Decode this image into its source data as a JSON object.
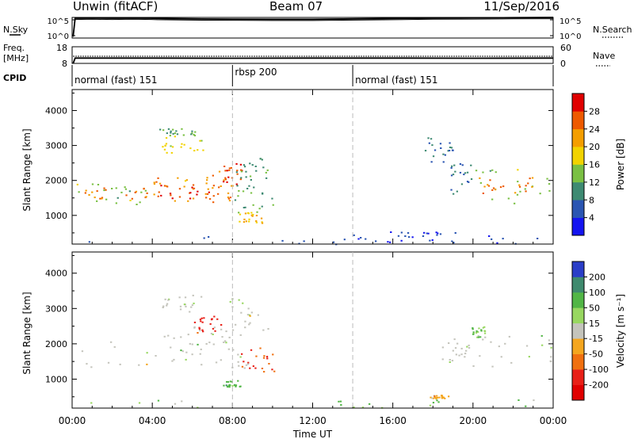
{
  "header": {
    "station": "Unwin (fitACF)",
    "beam": "Beam 07",
    "date": "11/Sep/2016"
  },
  "chart_data": [
    {
      "type": "line",
      "panel": "noise",
      "left_label": "N.Sky",
      "right_label": "N.Search",
      "left_ticks": [
        "10^5",
        "10^0"
      ],
      "right_ticks": [
        "10^5",
        "10^0"
      ],
      "series": [
        {
          "values": [
            {
              "x": 0.05,
              "y": 0.08
            },
            {
              "x": 0.15,
              "y": 0.96
            },
            {
              "x": 1.0,
              "y": 0.97
            },
            {
              "x": 2.0,
              "y": 0.96
            },
            {
              "x": 3.0,
              "y": 0.97
            },
            {
              "x": 3.95,
              "y": 0.96
            },
            {
              "x": 4.25,
              "y": 0.95
            },
            {
              "x": 6.0,
              "y": 0.93
            },
            {
              "x": 8.0,
              "y": 0.92
            },
            {
              "x": 10.0,
              "y": 0.91
            },
            {
              "x": 12.0,
              "y": 0.91
            },
            {
              "x": 14.0,
              "y": 0.93
            },
            {
              "x": 16.0,
              "y": 0.95
            },
            {
              "x": 18.0,
              "y": 0.97
            },
            {
              "x": 20.0,
              "y": 0.98
            },
            {
              "x": 22.0,
              "y": 0.99
            },
            {
              "x": 24.0,
              "y": 1.0
            }
          ]
        },
        {
          "values": [
            {
              "x": 0.05,
              "y": 0.06
            },
            {
              "x": 0.15,
              "y": 0.9
            },
            {
              "x": 1.0,
              "y": 0.91
            },
            {
              "x": 2.0,
              "y": 0.9
            },
            {
              "x": 3.0,
              "y": 0.91
            },
            {
              "x": 3.95,
              "y": 0.9
            },
            {
              "x": 4.25,
              "y": 0.89
            },
            {
              "x": 6.0,
              "y": 0.87
            },
            {
              "x": 8.0,
              "y": 0.86
            },
            {
              "x": 10.0,
              "y": 0.85
            },
            {
              "x": 12.0,
              "y": 0.85
            },
            {
              "x": 14.0,
              "y": 0.87
            },
            {
              "x": 16.0,
              "y": 0.89
            },
            {
              "x": 18.0,
              "y": 0.91
            },
            {
              "x": 20.0,
              "y": 0.92
            },
            {
              "x": 22.0,
              "y": 0.93
            },
            {
              "x": 24.0,
              "y": 0.94
            }
          ]
        }
      ],
      "gap": [
        3.95,
        4.25
      ]
    },
    {
      "type": "line",
      "panel": "frequency",
      "left_label": "Freq. [MHz]",
      "right_label": "Nave",
      "left_ticks": [
        18,
        8
      ],
      "right_ticks": [
        60,
        0
      ],
      "series": [
        {
          "values": [
            {
              "x": 0.05,
              "y": 8
            },
            {
              "x": 0.15,
              "y": 11.2
            },
            {
              "x": 4.0,
              "y": 11.2
            },
            {
              "x": 8.0,
              "y": 11.1
            },
            {
              "x": 12.0,
              "y": 11.2
            },
            {
              "x": 16.0,
              "y": 11.2
            },
            {
              "x": 20.0,
              "y": 11.1
            },
            {
              "x": 24.0,
              "y": 11.2
            }
          ]
        },
        {
          "values": [
            {
              "x": 0.05,
              "y": 12.3
            },
            {
              "x": 4.0,
              "y": 12.3
            },
            {
              "x": 8.0,
              "y": 12.3
            },
            {
              "x": 12.0,
              "y": 12.3
            },
            {
              "x": 16.0,
              "y": 12.3
            },
            {
              "x": 20.0,
              "y": 12.3
            },
            {
              "x": 24.0,
              "y": 12.3
            }
          ]
        }
      ]
    },
    {
      "type": "table",
      "panel": "cpid",
      "label": "CPID",
      "segments": [
        {
          "start": 0,
          "end": 8,
          "name": "normal (fast) 151"
        },
        {
          "start": 8,
          "end": 14,
          "name": "rbsp 200"
        },
        {
          "start": 14,
          "end": 24,
          "name": "normal (fast) 151"
        }
      ]
    },
    {
      "type": "heatmap",
      "panel": "power",
      "ylabel": "Slant Range [km]",
      "ylim": [
        180,
        4600
      ],
      "yticks": [
        1000,
        2000,
        3000,
        4000
      ],
      "colorbar_label": "Power [dB]",
      "colorbar_ticks": [
        4,
        8,
        12,
        16,
        20,
        24,
        28
      ],
      "colorbar_range": [
        0,
        32
      ],
      "colorbar_colors": [
        "#1414f0",
        "#2a55b2",
        "#3e8a72",
        "#7ac043",
        "#f2d300",
        "#f49e00",
        "#ee5a00",
        "#e00000"
      ],
      "regions": [
        {
          "t0": 0.2,
          "t1": 3.9,
          "r0": 1300,
          "r1": 1950,
          "p": 14
        },
        {
          "t0": 0.6,
          "t1": 3.7,
          "r0": 1450,
          "r1": 1800,
          "p": 24
        },
        {
          "t0": 4.0,
          "t1": 7.0,
          "r0": 1300,
          "r1": 2100,
          "p": 22
        },
        {
          "t0": 4.2,
          "t1": 6.8,
          "r0": 1500,
          "r1": 1900,
          "p": 28
        },
        {
          "t0": 6.6,
          "t1": 8.0,
          "r0": 1300,
          "r1": 2300,
          "p": 24
        },
        {
          "t0": 7.5,
          "t1": 8.7,
          "r0": 1900,
          "r1": 2500,
          "p": 28
        },
        {
          "t0": 4.3,
          "t1": 6.5,
          "r0": 2800,
          "r1": 3300,
          "p": 18
        },
        {
          "t0": 4.3,
          "t1": 6.2,
          "r0": 3300,
          "r1": 3500,
          "p": 12
        },
        {
          "t0": 8.0,
          "t1": 10.0,
          "r0": 1100,
          "r1": 2000,
          "p": 12
        },
        {
          "t0": 8.3,
          "t1": 9.5,
          "r0": 800,
          "r1": 1100,
          "p": 20
        },
        {
          "t0": 8.1,
          "t1": 9.8,
          "r0": 2000,
          "r1": 2700,
          "p": 11
        },
        {
          "t0": 18.8,
          "t1": 20.0,
          "r0": 1600,
          "r1": 2500,
          "p": 8
        },
        {
          "t0": 20.0,
          "t1": 23.9,
          "r0": 1350,
          "r1": 2350,
          "p": 14
        },
        {
          "t0": 20.2,
          "t1": 23.2,
          "r0": 1650,
          "r1": 2100,
          "p": 24
        },
        {
          "t0": 17.5,
          "t1": 19.0,
          "r0": 2500,
          "r1": 3300,
          "p": 8
        },
        {
          "t0": 0.0,
          "t1": 24.0,
          "r0": 190,
          "r1": 520,
          "p": 6
        },
        {
          "t0": 15.5,
          "t1": 19.3,
          "r0": 190,
          "r1": 560,
          "p": 4
        }
      ]
    },
    {
      "type": "heatmap",
      "panel": "velocity",
      "ylabel": "Slant Range [km]",
      "ylim": [
        180,
        4600
      ],
      "yticks": [
        1000,
        2000,
        3000,
        4000
      ],
      "xlabel": "Time UT",
      "xlim": [
        0,
        24
      ],
      "xticks": [
        "00:00",
        "04:00",
        "08:00",
        "12:00",
        "16:00",
        "20:00",
        "00:00"
      ],
      "colorbar_label": "Velocity [m s⁻¹]",
      "colorbar_ticks": [
        200,
        100,
        50,
        15,
        -15,
        -50,
        -100,
        -200
      ],
      "colorbar_colors": [
        "#2a3ec8",
        "#3f8a6e",
        "#52b646",
        "#98d760",
        "#c4c4bc",
        "#f4a61f",
        "#f07010",
        "#e82018",
        "#e00000"
      ],
      "regions": [
        {
          "t0": 0.2,
          "t1": 6.8,
          "r0": 1300,
          "r1": 2100,
          "v": 0
        },
        {
          "t0": 4.5,
          "t1": 7.8,
          "r0": 1800,
          "r1": 2500,
          "v": 0
        },
        {
          "t0": 4.3,
          "t1": 6.5,
          "r0": 2900,
          "r1": 3400,
          "v": 0
        },
        {
          "t0": 8.4,
          "t1": 10.2,
          "r0": 1200,
          "r1": 1900,
          "v": -150
        },
        {
          "t0": 6.8,
          "t1": 8.8,
          "r0": 1300,
          "r1": 2600,
          "v": 0
        },
        {
          "t0": 7.8,
          "t1": 9.8,
          "r0": 2400,
          "r1": 3300,
          "v": 0
        },
        {
          "t0": 6.0,
          "t1": 7.5,
          "r0": 2300,
          "r1": 2800,
          "v": -180
        },
        {
          "t0": 7.5,
          "t1": 8.4,
          "r0": 800,
          "r1": 1000,
          "v": 60
        },
        {
          "t0": 19.6,
          "t1": 23.9,
          "r0": 1300,
          "r1": 2300,
          "v": 0
        },
        {
          "t0": 18.3,
          "t1": 19.8,
          "r0": 1500,
          "r1": 2300,
          "v": 0
        },
        {
          "t0": 19.8,
          "t1": 20.6,
          "r0": 2200,
          "r1": 2500,
          "v": 40
        },
        {
          "t0": 17.8,
          "t1": 18.8,
          "r0": 450,
          "r1": 560,
          "v": -50
        },
        {
          "t0": 0.0,
          "t1": 24.0,
          "r0": 190,
          "r1": 460,
          "v": 30
        }
      ]
    }
  ]
}
